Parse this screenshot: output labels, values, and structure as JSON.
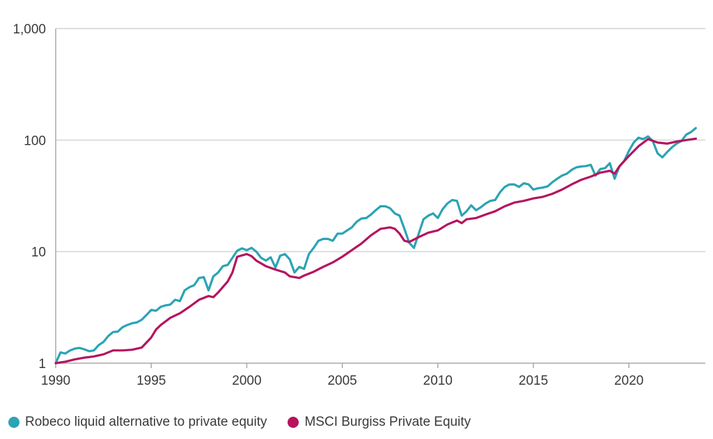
{
  "chart_data": {
    "type": "line",
    "title": "",
    "xlabel": "",
    "ylabel": "",
    "yscale": "log",
    "ylim": [
      1,
      1000
    ],
    "xlim": [
      1990,
      2023.5
    ],
    "x_ticks": [
      "1990",
      "1995",
      "2000",
      "2005",
      "2010",
      "2015",
      "2020"
    ],
    "y_ticks": [
      "1",
      "10",
      "100",
      "1,000"
    ],
    "grid": "horizontal",
    "legend_position": "bottom-left",
    "series": [
      {
        "name": "Robeco liquid alternative to private equity",
        "color": "#2ba3b5",
        "points": [
          [
            1990.0,
            1.0
          ],
          [
            1990.25,
            1.25
          ],
          [
            1990.5,
            1.22
          ],
          [
            1990.75,
            1.3
          ],
          [
            1991.0,
            1.35
          ],
          [
            1991.25,
            1.37
          ],
          [
            1991.5,
            1.33
          ],
          [
            1991.75,
            1.28
          ],
          [
            1992.0,
            1.3
          ],
          [
            1992.25,
            1.45
          ],
          [
            1992.5,
            1.55
          ],
          [
            1992.75,
            1.75
          ],
          [
            1993.0,
            1.9
          ],
          [
            1993.25,
            1.92
          ],
          [
            1993.5,
            2.1
          ],
          [
            1993.75,
            2.2
          ],
          [
            1994.0,
            2.28
          ],
          [
            1994.25,
            2.32
          ],
          [
            1994.5,
            2.45
          ],
          [
            1994.75,
            2.7
          ],
          [
            1995.0,
            3.0
          ],
          [
            1995.25,
            2.95
          ],
          [
            1995.5,
            3.2
          ],
          [
            1995.75,
            3.3
          ],
          [
            1996.0,
            3.35
          ],
          [
            1996.25,
            3.7
          ],
          [
            1996.5,
            3.6
          ],
          [
            1996.75,
            4.5
          ],
          [
            1997.0,
            4.8
          ],
          [
            1997.25,
            5.0
          ],
          [
            1997.5,
            5.8
          ],
          [
            1997.75,
            5.9
          ],
          [
            1998.0,
            4.5
          ],
          [
            1998.25,
            6.0
          ],
          [
            1998.5,
            6.5
          ],
          [
            1998.75,
            7.4
          ],
          [
            1999.0,
            7.6
          ],
          [
            1999.25,
            8.8
          ],
          [
            1999.5,
            10.2
          ],
          [
            1999.75,
            10.7
          ],
          [
            2000.0,
            10.3
          ],
          [
            2000.25,
            10.8
          ],
          [
            2000.5,
            10.0
          ],
          [
            2000.75,
            8.8
          ],
          [
            2001.0,
            8.3
          ],
          [
            2001.25,
            8.9
          ],
          [
            2001.5,
            7.2
          ],
          [
            2001.75,
            9.2
          ],
          [
            2002.0,
            9.5
          ],
          [
            2002.25,
            8.5
          ],
          [
            2002.5,
            6.5
          ],
          [
            2002.75,
            7.3
          ],
          [
            2003.0,
            7.0
          ],
          [
            2003.25,
            9.5
          ],
          [
            2003.5,
            10.8
          ],
          [
            2003.75,
            12.5
          ],
          [
            2004.0,
            13.0
          ],
          [
            2004.25,
            13.0
          ],
          [
            2004.5,
            12.5
          ],
          [
            2004.75,
            14.5
          ],
          [
            2005.0,
            14.5
          ],
          [
            2005.25,
            15.5
          ],
          [
            2005.5,
            16.5
          ],
          [
            2005.75,
            18.5
          ],
          [
            2006.0,
            19.8
          ],
          [
            2006.25,
            20.0
          ],
          [
            2006.5,
            21.5
          ],
          [
            2006.75,
            23.5
          ],
          [
            2007.0,
            25.5
          ],
          [
            2007.25,
            25.5
          ],
          [
            2007.5,
            24.5
          ],
          [
            2007.75,
            22.0
          ],
          [
            2008.0,
            21.0
          ],
          [
            2008.25,
            16.0
          ],
          [
            2008.5,
            12.0
          ],
          [
            2008.75,
            10.8
          ],
          [
            2009.0,
            14.5
          ],
          [
            2009.25,
            19.5
          ],
          [
            2009.5,
            21.0
          ],
          [
            2009.75,
            22.0
          ],
          [
            2010.0,
            20.0
          ],
          [
            2010.25,
            24.0
          ],
          [
            2010.5,
            27.0
          ],
          [
            2010.75,
            29.0
          ],
          [
            2011.0,
            28.5
          ],
          [
            2011.25,
            21.0
          ],
          [
            2011.5,
            23.0
          ],
          [
            2011.75,
            26.0
          ],
          [
            2012.0,
            23.5
          ],
          [
            2012.25,
            25.0
          ],
          [
            2012.5,
            27.0
          ],
          [
            2012.75,
            28.5
          ],
          [
            2013.0,
            29.0
          ],
          [
            2013.25,
            34.0
          ],
          [
            2013.5,
            38.0
          ],
          [
            2013.75,
            40.0
          ],
          [
            2014.0,
            40.0
          ],
          [
            2014.25,
            38.0
          ],
          [
            2014.5,
            41.0
          ],
          [
            2014.75,
            40.0
          ],
          [
            2015.0,
            36.0
          ],
          [
            2015.25,
            37.0
          ],
          [
            2015.5,
            37.5
          ],
          [
            2015.75,
            38.5
          ],
          [
            2016.0,
            42.0
          ],
          [
            2016.25,
            45.0
          ],
          [
            2016.5,
            48.0
          ],
          [
            2016.75,
            50.0
          ],
          [
            2017.0,
            54.0
          ],
          [
            2017.25,
            57.0
          ],
          [
            2017.5,
            58.0
          ],
          [
            2017.75,
            58.5
          ],
          [
            2018.0,
            60.0
          ],
          [
            2018.25,
            48.0
          ],
          [
            2018.5,
            55.0
          ],
          [
            2018.75,
            56.0
          ],
          [
            2019.0,
            62.0
          ],
          [
            2019.25,
            45.0
          ],
          [
            2019.5,
            58.0
          ],
          [
            2019.75,
            65.0
          ],
          [
            2020.0,
            80.0
          ],
          [
            2020.25,
            95.0
          ],
          [
            2020.5,
            105.0
          ],
          [
            2020.75,
            102.0
          ],
          [
            2021.0,
            108.0
          ],
          [
            2021.25,
            98.0
          ],
          [
            2021.5,
            76.0
          ],
          [
            2021.75,
            70.0
          ],
          [
            2022.0,
            78.0
          ],
          [
            2022.25,
            86.0
          ],
          [
            2022.5,
            93.0
          ],
          [
            2022.75,
            98.0
          ],
          [
            2023.0,
            112.0
          ],
          [
            2023.25,
            118.0
          ],
          [
            2023.5,
            128.0
          ]
        ]
      },
      {
        "name": "MSCI Burgiss Private Equity",
        "color": "#b5135e",
        "points": [
          [
            1990.0,
            1.0
          ],
          [
            1990.5,
            1.03
          ],
          [
            1991.0,
            1.08
          ],
          [
            1991.5,
            1.12
          ],
          [
            1992.0,
            1.15
          ],
          [
            1992.5,
            1.2
          ],
          [
            1993.0,
            1.3
          ],
          [
            1993.5,
            1.3
          ],
          [
            1994.0,
            1.32
          ],
          [
            1994.5,
            1.38
          ],
          [
            1995.0,
            1.7
          ],
          [
            1995.25,
            2.0
          ],
          [
            1995.5,
            2.2
          ],
          [
            1996.0,
            2.55
          ],
          [
            1996.5,
            2.8
          ],
          [
            1997.0,
            3.2
          ],
          [
            1997.5,
            3.7
          ],
          [
            1998.0,
            4.0
          ],
          [
            1998.25,
            3.9
          ],
          [
            1998.5,
            4.3
          ],
          [
            1999.0,
            5.4
          ],
          [
            1999.25,
            6.5
          ],
          [
            1999.5,
            9.0
          ],
          [
            2000.0,
            9.5
          ],
          [
            2000.25,
            9.1
          ],
          [
            2000.5,
            8.3
          ],
          [
            2001.0,
            7.4
          ],
          [
            2001.5,
            6.9
          ],
          [
            2002.0,
            6.5
          ],
          [
            2002.25,
            6.0
          ],
          [
            2002.75,
            5.8
          ],
          [
            2003.0,
            6.1
          ],
          [
            2003.5,
            6.6
          ],
          [
            2004.0,
            7.3
          ],
          [
            2004.5,
            8.0
          ],
          [
            2005.0,
            9.0
          ],
          [
            2005.5,
            10.3
          ],
          [
            2006.0,
            11.8
          ],
          [
            2006.5,
            14.0
          ],
          [
            2007.0,
            16.0
          ],
          [
            2007.5,
            16.5
          ],
          [
            2007.75,
            16.0
          ],
          [
            2008.0,
            14.5
          ],
          [
            2008.25,
            12.5
          ],
          [
            2008.5,
            12.2
          ],
          [
            2009.0,
            13.5
          ],
          [
            2009.5,
            14.8
          ],
          [
            2010.0,
            15.5
          ],
          [
            2010.5,
            17.5
          ],
          [
            2011.0,
            19.0
          ],
          [
            2011.25,
            18.0
          ],
          [
            2011.5,
            19.5
          ],
          [
            2012.0,
            20.0
          ],
          [
            2012.5,
            21.5
          ],
          [
            2013.0,
            23.0
          ],
          [
            2013.5,
            25.5
          ],
          [
            2014.0,
            27.5
          ],
          [
            2014.5,
            28.5
          ],
          [
            2015.0,
            30.0
          ],
          [
            2015.5,
            31.0
          ],
          [
            2016.0,
            33.0
          ],
          [
            2016.5,
            36.0
          ],
          [
            2017.0,
            40.0
          ],
          [
            2017.5,
            44.0
          ],
          [
            2018.0,
            47.0
          ],
          [
            2018.5,
            51.0
          ],
          [
            2019.0,
            53.0
          ],
          [
            2019.25,
            50.0
          ],
          [
            2019.5,
            58.0
          ],
          [
            2020.0,
            72.0
          ],
          [
            2020.5,
            88.0
          ],
          [
            2021.0,
            102.0
          ],
          [
            2021.5,
            95.0
          ],
          [
            2022.0,
            93.0
          ],
          [
            2022.5,
            97.0
          ],
          [
            2023.0,
            100.0
          ],
          [
            2023.5,
            103.0
          ]
        ]
      }
    ]
  },
  "legend": {
    "items": [
      {
        "label": "Robeco liquid alternative to private equity",
        "color": "#2ba3b5"
      },
      {
        "label": "MSCI Burgiss Private Equity",
        "color": "#b5135e"
      }
    ]
  },
  "colors": {
    "grid": "#d4d4d4",
    "axis": "#a8a8a8",
    "text": "#3a3a3a"
  }
}
